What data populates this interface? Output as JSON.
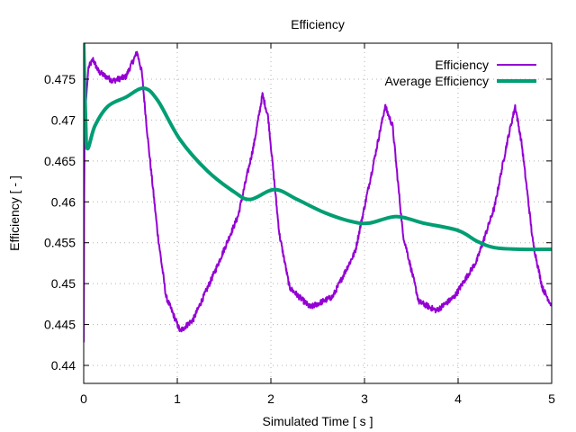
{
  "chart_data": {
    "type": "line",
    "title": "Efficiency",
    "xlabel": "Simulated Time [ s ]",
    "ylabel": "Efficiency [ - ]",
    "xlim": [
      0,
      5
    ],
    "ylim": [
      0.4378,
      0.4794
    ],
    "xticks": [
      0,
      1,
      2,
      3,
      4,
      5
    ],
    "xtick_labels": [
      "0",
      "1",
      "2",
      "3",
      "4",
      "5"
    ],
    "yticks": [
      0.44,
      0.445,
      0.45,
      0.455,
      0.46,
      0.465,
      0.47,
      0.475
    ],
    "ytick_labels": [
      "0.44",
      "0.445",
      "0.45",
      "0.455",
      "0.46",
      "0.465",
      "0.47",
      "0.475"
    ],
    "grid": true,
    "legend_position": "top-right",
    "series": [
      {
        "name": "Efficiency",
        "color": "#9400d3",
        "noisy": true,
        "x": [
          0,
          0.005,
          0.01,
          0.05,
          0.1,
          0.16,
          0.31,
          0.45,
          0.57,
          0.62,
          0.69,
          0.79,
          0.88,
          1.03,
          1.17,
          1.41,
          1.65,
          1.82,
          1.91,
          1.97,
          2.09,
          2.2,
          2.42,
          2.66,
          2.9,
          3.1,
          3.22,
          3.3,
          3.41,
          3.58,
          3.77,
          3.96,
          4.2,
          4.39,
          4.52,
          4.61,
          4.68,
          4.8,
          4.9,
          5.0
        ],
        "y": [
          0.4429,
          0.46,
          0.47,
          0.4764,
          0.4774,
          0.4759,
          0.4748,
          0.4753,
          0.4783,
          0.4759,
          0.4671,
          0.4561,
          0.4484,
          0.4442,
          0.4456,
          0.4517,
          0.4583,
          0.4671,
          0.4731,
          0.4704,
          0.4561,
          0.4495,
          0.4471,
          0.4484,
          0.4539,
          0.4649,
          0.4717,
          0.4693,
          0.4561,
          0.4478,
          0.4467,
          0.4484,
          0.4528,
          0.4594,
          0.4671,
          0.4717,
          0.4671,
          0.455,
          0.4495,
          0.4473
        ]
      },
      {
        "name": "Average Efficiency",
        "color": "#009e73",
        "noisy": false,
        "x": [
          0,
          0.02,
          0.04,
          0.12,
          0.26,
          0.45,
          0.64,
          0.79,
          1.03,
          1.32,
          1.61,
          1.78,
          2.04,
          2.28,
          2.57,
          2.86,
          3.05,
          3.34,
          3.63,
          4.0,
          4.2,
          4.39,
          4.68,
          5.0
        ],
        "y": [
          0.4794,
          0.47,
          0.4665,
          0.4693,
          0.4717,
          0.4728,
          0.4739,
          0.4724,
          0.4676,
          0.4638,
          0.4612,
          0.4603,
          0.4615,
          0.4603,
          0.4587,
          0.4576,
          0.4574,
          0.4582,
          0.4574,
          0.4565,
          0.4552,
          0.4544,
          0.4542,
          0.4542
        ]
      }
    ]
  }
}
